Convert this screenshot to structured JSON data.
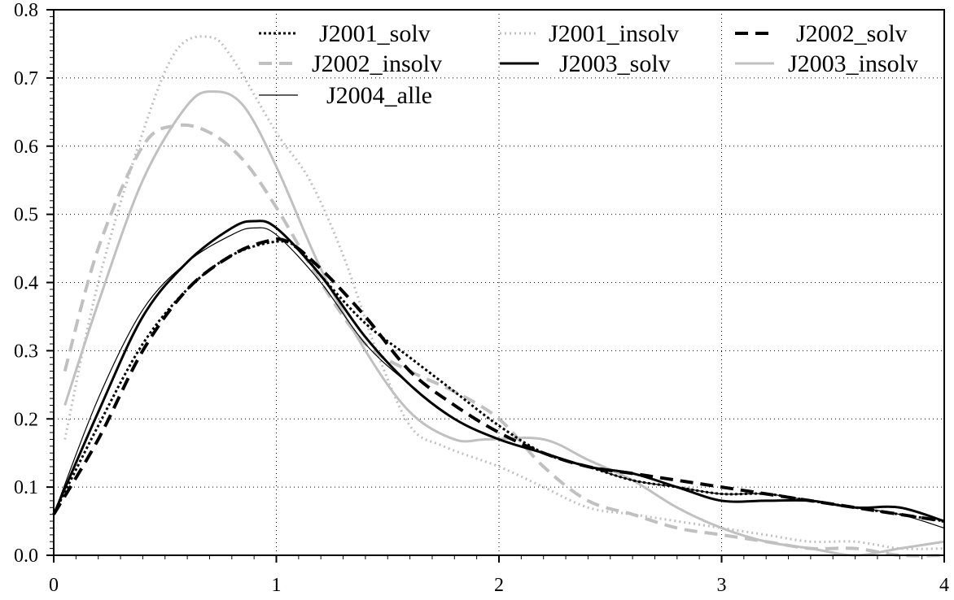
{
  "chart_data": {
    "type": "line",
    "title": "",
    "xlabel": "",
    "ylabel": "",
    "xlim": [
      0,
      4
    ],
    "ylim": [
      0,
      0.8
    ],
    "grid": true,
    "legend_position": "top",
    "x_ticks": [
      "0",
      "1",
      "2",
      "3",
      "4"
    ],
    "y_ticks": [
      "0.0",
      "0.1",
      "0.2",
      "0.3",
      "0.4",
      "0.5",
      "0.6",
      "0.7",
      "0.8"
    ],
    "series": [
      {
        "name": "J2001_solv",
        "color": "#000000",
        "style": "dotted-dense",
        "x": [
          0,
          0.2,
          0.4,
          0.6,
          0.8,
          1.0,
          1.1,
          1.2,
          1.4,
          1.6,
          1.8,
          2.0,
          2.2,
          2.4,
          2.6,
          2.8,
          3.0,
          3.2,
          3.4,
          3.6,
          3.8,
          4.0
        ],
        "y": [
          0.06,
          0.19,
          0.31,
          0.39,
          0.44,
          0.46,
          0.45,
          0.41,
          0.34,
          0.29,
          0.24,
          0.19,
          0.15,
          0.13,
          0.11,
          0.1,
          0.09,
          0.09,
          0.08,
          0.07,
          0.06,
          0.05
        ]
      },
      {
        "name": "J2001_insolv",
        "color": "#c0c0c0",
        "style": "dotted",
        "x": [
          0.05,
          0.2,
          0.4,
          0.55,
          0.7,
          0.8,
          1.0,
          1.15,
          1.3,
          1.45,
          1.6,
          1.75,
          2.0,
          2.2,
          2.4,
          2.6,
          2.8,
          3.0,
          3.2,
          3.4,
          3.6,
          3.8,
          4.0
        ],
        "y": [
          0.17,
          0.4,
          0.62,
          0.74,
          0.76,
          0.73,
          0.62,
          0.55,
          0.44,
          0.3,
          0.19,
          0.16,
          0.13,
          0.1,
          0.07,
          0.06,
          0.05,
          0.04,
          0.03,
          0.02,
          0.02,
          0.01,
          0.01
        ]
      },
      {
        "name": "J2002_solv",
        "color": "#000000",
        "style": "dashed",
        "x": [
          0,
          0.2,
          0.4,
          0.6,
          0.8,
          0.95,
          1.05,
          1.2,
          1.4,
          1.6,
          1.8,
          2.0,
          2.2,
          2.4,
          2.6,
          2.8,
          3.0,
          3.2,
          3.4,
          3.6,
          3.8,
          4.0
        ],
        "y": [
          0.06,
          0.17,
          0.3,
          0.39,
          0.44,
          0.46,
          0.46,
          0.42,
          0.35,
          0.27,
          0.22,
          0.18,
          0.15,
          0.13,
          0.12,
          0.11,
          0.1,
          0.09,
          0.08,
          0.07,
          0.06,
          0.05
        ]
      },
      {
        "name": "J2002_insolv",
        "color": "#c0c0c0",
        "style": "dashed",
        "x": [
          0.05,
          0.2,
          0.4,
          0.55,
          0.7,
          0.85,
          1.0,
          1.2,
          1.4,
          1.6,
          1.8,
          2.0,
          2.2,
          2.4,
          2.6,
          2.8,
          3.0,
          3.2,
          3.4,
          3.6,
          3.8,
          4.0
        ],
        "y": [
          0.27,
          0.45,
          0.6,
          0.63,
          0.62,
          0.58,
          0.51,
          0.4,
          0.31,
          0.27,
          0.24,
          0.2,
          0.13,
          0.08,
          0.06,
          0.04,
          0.03,
          0.02,
          0.01,
          0.01,
          0.0,
          0.0
        ]
      },
      {
        "name": "J2003_solv",
        "color": "#000000",
        "style": "solid-thick",
        "x": [
          0,
          0.2,
          0.4,
          0.6,
          0.8,
          0.9,
          1.0,
          1.2,
          1.4,
          1.6,
          1.8,
          2.0,
          2.2,
          2.4,
          2.6,
          2.8,
          3.0,
          3.2,
          3.4,
          3.6,
          3.8,
          4.0
        ],
        "y": [
          0.06,
          0.21,
          0.35,
          0.43,
          0.48,
          0.49,
          0.48,
          0.41,
          0.32,
          0.25,
          0.2,
          0.17,
          0.15,
          0.13,
          0.12,
          0.1,
          0.08,
          0.08,
          0.08,
          0.07,
          0.07,
          0.05
        ]
      },
      {
        "name": "J2003_insolv",
        "color": "#c0c0c0",
        "style": "solid-thick",
        "x": [
          0.05,
          0.2,
          0.4,
          0.6,
          0.72,
          0.85,
          1.0,
          1.2,
          1.4,
          1.6,
          1.8,
          1.95,
          2.2,
          2.4,
          2.6,
          2.8,
          3.0,
          3.2,
          3.4,
          3.6,
          3.8,
          4.0
        ],
        "y": [
          0.22,
          0.37,
          0.55,
          0.66,
          0.68,
          0.66,
          0.57,
          0.42,
          0.3,
          0.21,
          0.17,
          0.17,
          0.17,
          0.14,
          0.11,
          0.07,
          0.04,
          0.02,
          0.01,
          0.0,
          0.01,
          0.02
        ]
      },
      {
        "name": "J2004_alle",
        "color": "#000000",
        "style": "solid-thin",
        "x": [
          0,
          0.2,
          0.4,
          0.6,
          0.8,
          0.9,
          1.0,
          1.2,
          1.4,
          1.6,
          1.8,
          2.0,
          2.2,
          2.4,
          2.6,
          2.8,
          3.0,
          3.2,
          3.4,
          3.6,
          3.8,
          4.0
        ],
        "y": [
          0.06,
          0.23,
          0.36,
          0.43,
          0.47,
          0.48,
          0.47,
          0.4,
          0.31,
          0.25,
          0.2,
          0.17,
          0.15,
          0.13,
          0.11,
          0.1,
          0.09,
          0.09,
          0.08,
          0.07,
          0.06,
          0.04
        ]
      }
    ]
  }
}
